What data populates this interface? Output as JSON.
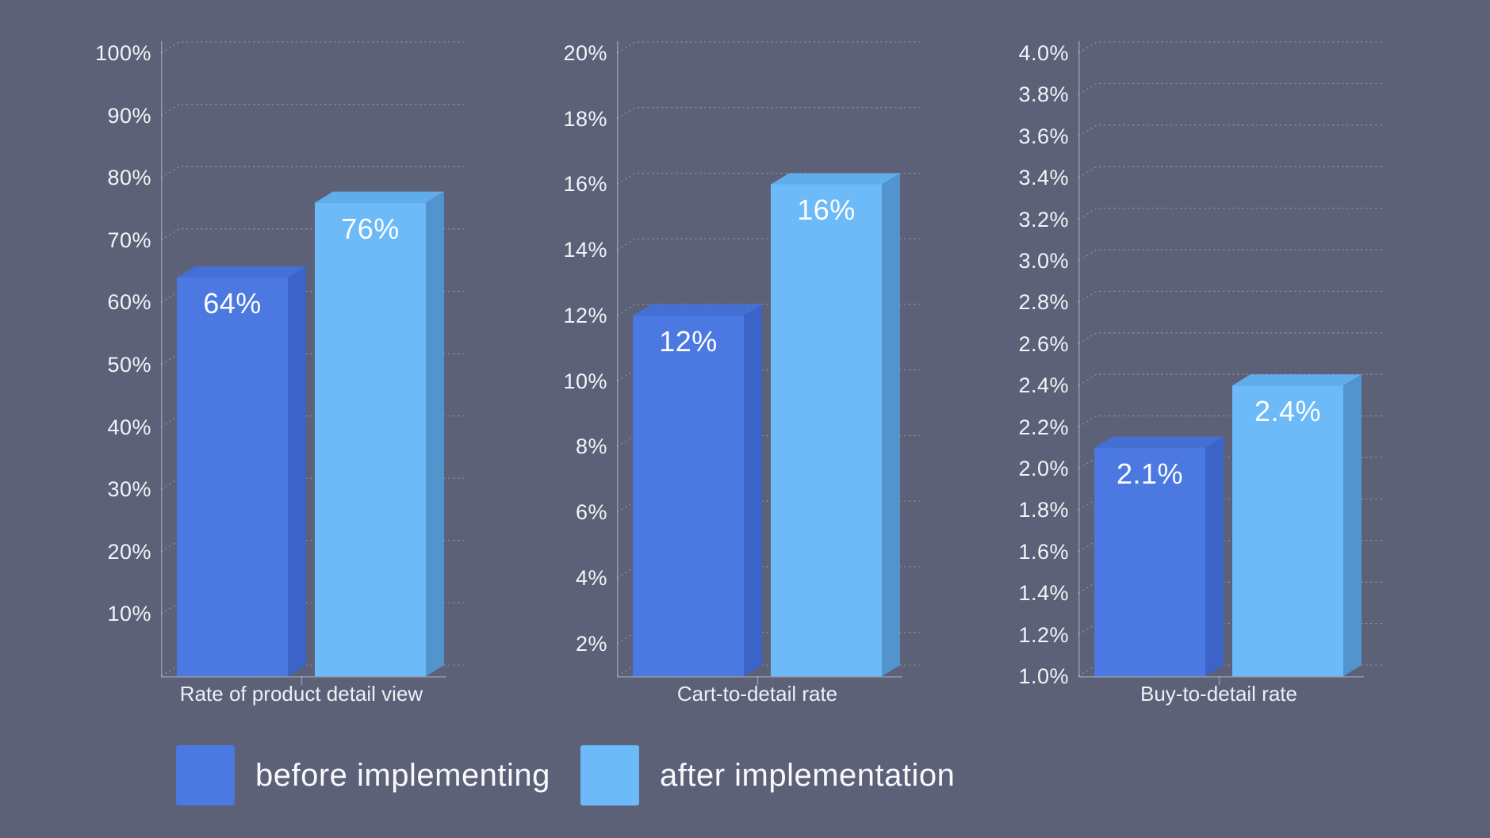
{
  "palette": {
    "background": "#5c6178",
    "grid": "rgba(223,229,242,0.32)",
    "axis": "rgba(223,229,242,0.42)",
    "tick_text": "#f2f4f8",
    "value_text": "#fdfdfe",
    "category_text": "#eef0f6",
    "legend_text": "#f8f9fc",
    "series": [
      {
        "name": "before implementing",
        "front": "#4b79e1",
        "top": "#4470d6",
        "side": "#3c63c8"
      },
      {
        "name": "after implementation",
        "front": "#6cbaf7",
        "top": "#5fadeb",
        "side": "#5194ce"
      }
    ]
  },
  "legend": {
    "items": [
      {
        "label": "before implementing",
        "color": "#4b79e1"
      },
      {
        "label": "after implementation",
        "color": "#6cbaf7"
      }
    ]
  },
  "chart_data": [
    {
      "type": "bar",
      "title": "Rate of product detail view",
      "categories": [
        "Rate of product detail view"
      ],
      "series": [
        {
          "name": "before implementing",
          "values": [
            64
          ],
          "labels": [
            "64%"
          ]
        },
        {
          "name": "after implementation",
          "values": [
            76
          ],
          "labels": [
            "76%"
          ]
        }
      ],
      "xlabel": "",
      "ylabel": "",
      "ylim": [
        0,
        100
      ],
      "grid": true,
      "legend_position": "bottom",
      "style_3d": true,
      "yticks": [
        {
          "value": 10,
          "label": "10%"
        },
        {
          "value": 20,
          "label": "20%"
        },
        {
          "value": 30,
          "label": "30%"
        },
        {
          "value": 40,
          "label": "40%"
        },
        {
          "value": 50,
          "label": "50%"
        },
        {
          "value": 60,
          "label": "60%"
        },
        {
          "value": 70,
          "label": "70%"
        },
        {
          "value": 80,
          "label": "80%"
        },
        {
          "value": 90,
          "label": "90%"
        },
        {
          "value": 100,
          "label": "100%"
        }
      ]
    },
    {
      "type": "bar",
      "title": "Cart-to-detail rate",
      "categories": [
        "Cart-to-detail rate"
      ],
      "series": [
        {
          "name": "before implementing",
          "values": [
            12
          ],
          "labels": [
            "12%"
          ]
        },
        {
          "name": "after implementation",
          "values": [
            16
          ],
          "labels": [
            "16%"
          ]
        }
      ],
      "xlabel": "",
      "ylabel": "",
      "ylim": [
        1,
        20
      ],
      "grid": true,
      "legend_position": "bottom",
      "style_3d": true,
      "yticks": [
        {
          "value": 2,
          "label": "2%"
        },
        {
          "value": 4,
          "label": "4%"
        },
        {
          "value": 6,
          "label": "6%"
        },
        {
          "value": 8,
          "label": "8%"
        },
        {
          "value": 10,
          "label": "10%"
        },
        {
          "value": 12,
          "label": "12%"
        },
        {
          "value": 14,
          "label": "14%"
        },
        {
          "value": 16,
          "label": "16%"
        },
        {
          "value": 18,
          "label": "18%"
        },
        {
          "value": 20,
          "label": "20%"
        }
      ]
    },
    {
      "type": "bar",
      "title": "Buy-to-detail rate",
      "categories": [
        "Buy-to-detail rate"
      ],
      "series": [
        {
          "name": "before implementing",
          "values": [
            2.1
          ],
          "labels": [
            "2.1%"
          ]
        },
        {
          "name": "after implementation",
          "values": [
            2.4
          ],
          "labels": [
            "2.4%"
          ]
        }
      ],
      "xlabel": "",
      "ylabel": "",
      "ylim": [
        1.0,
        4.0
      ],
      "grid": true,
      "legend_position": "bottom",
      "style_3d": true,
      "yticks": [
        {
          "value": 1.0,
          "label": "1.0%"
        },
        {
          "value": 1.2,
          "label": "1.2%"
        },
        {
          "value": 1.4,
          "label": "1.4%"
        },
        {
          "value": 1.6,
          "label": "1.6%"
        },
        {
          "value": 1.8,
          "label": "1.8%"
        },
        {
          "value": 2.0,
          "label": "2.0%"
        },
        {
          "value": 2.2,
          "label": "2.2%"
        },
        {
          "value": 2.4,
          "label": "2.4%"
        },
        {
          "value": 2.6,
          "label": "2.6%"
        },
        {
          "value": 2.8,
          "label": "2.8%"
        },
        {
          "value": 3.0,
          "label": "3.0%"
        },
        {
          "value": 3.2,
          "label": "3.2%"
        },
        {
          "value": 3.4,
          "label": "3.4%"
        },
        {
          "value": 3.6,
          "label": "3.6%"
        },
        {
          "value": 3.8,
          "label": "3.8%"
        },
        {
          "value": 4.0,
          "label": "4.0%"
        }
      ]
    }
  ]
}
